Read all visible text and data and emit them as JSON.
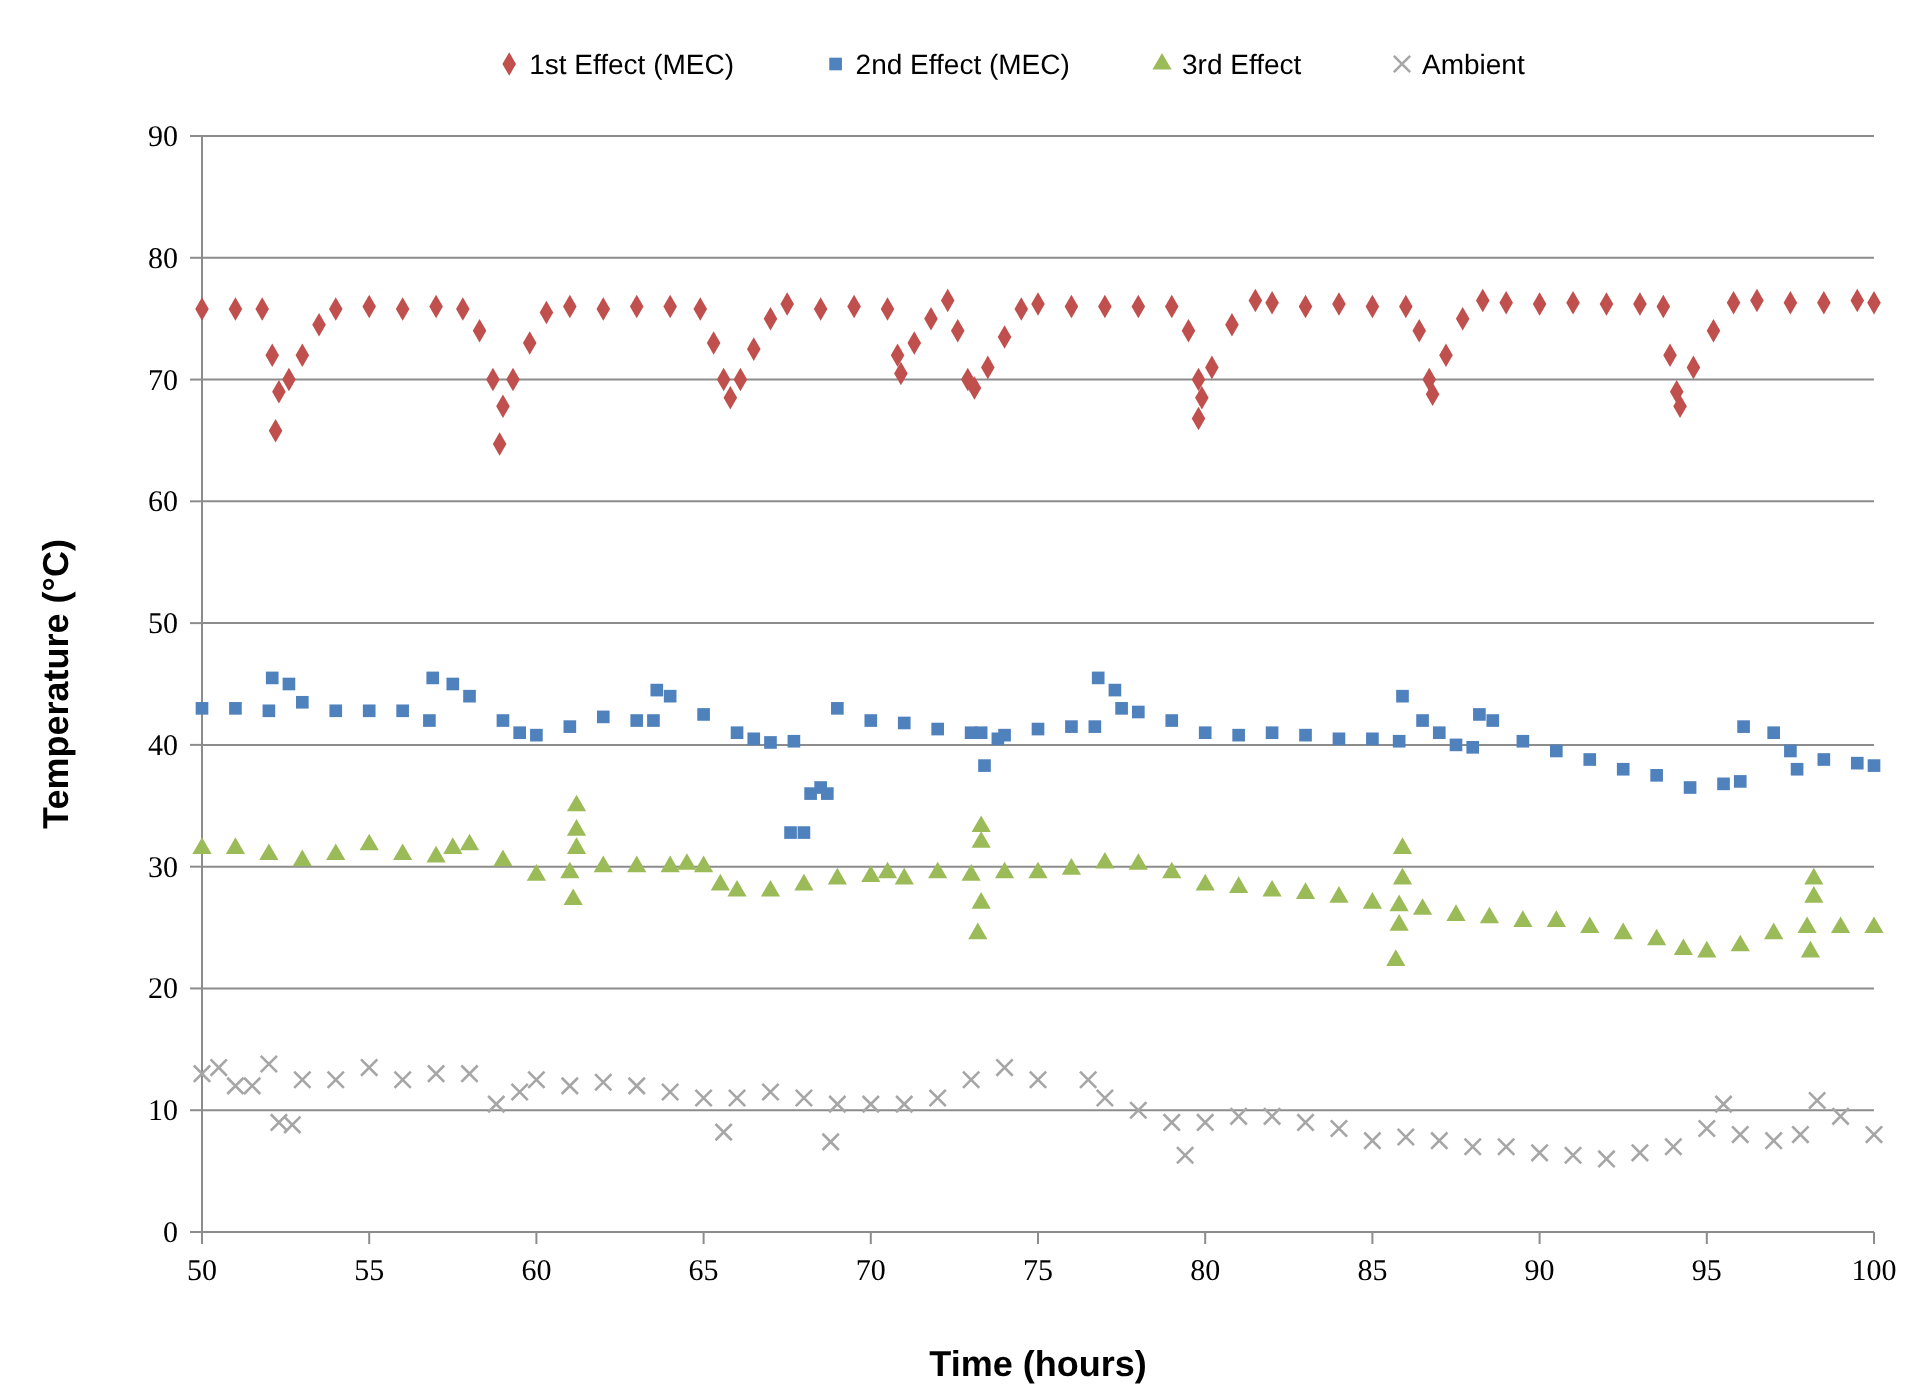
{
  "chart_data": {
    "type": "scatter",
    "xlabel": "Time (hours)",
    "ylabel": "Temperature (°C)",
    "xlim": [
      50,
      100
    ],
    "ylim": [
      0,
      90
    ],
    "xticks": [
      50,
      55,
      60,
      65,
      70,
      75,
      80,
      85,
      90,
      95,
      100
    ],
    "yticks": [
      0,
      10,
      20,
      30,
      40,
      50,
      60,
      70,
      80,
      90
    ],
    "grid": "y",
    "legend": "top",
    "series": [
      {
        "name": "1st Effect (MEC)",
        "color": "#c0504d",
        "marker": "diamond",
        "x": [
          50,
          51,
          51.8,
          52.1,
          52.3,
          52.2,
          52.6,
          53,
          53.5,
          54,
          55,
          56,
          57,
          57.8,
          58.3,
          58.7,
          59,
          58.9,
          59.3,
          59.8,
          60.3,
          61,
          62,
          63,
          64,
          64.9,
          65.3,
          65.6,
          65.8,
          66.1,
          66.5,
          67,
          67.5,
          68.5,
          69.5,
          70.5,
          70.8,
          70.9,
          71.3,
          71.8,
          72.3,
          72.6,
          72.9,
          73.1,
          73.5,
          74,
          74.5,
          75,
          76,
          77,
          78,
          79,
          79.5,
          79.8,
          79.9,
          79.8,
          80.2,
          80.8,
          81.5,
          82,
          83,
          84,
          85,
          86,
          86.4,
          86.7,
          86.8,
          87.2,
          87.7,
          88.3,
          89,
          90,
          91,
          92,
          93,
          93.7,
          93.9,
          94.1,
          94.2,
          94.6,
          95.2,
          95.8,
          96.5,
          97.5,
          98.5,
          99.5,
          100
        ],
        "values": [
          75.8,
          75.8,
          75.8,
          72,
          69,
          65.8,
          70,
          72,
          74.5,
          75.8,
          76,
          75.8,
          76,
          75.8,
          74,
          70,
          67.8,
          64.7,
          70,
          73,
          75.5,
          76,
          75.8,
          76,
          76,
          75.8,
          73,
          70,
          68.5,
          70,
          72.5,
          75,
          76.2,
          75.8,
          76,
          75.8,
          72,
          70.5,
          73,
          75,
          76.5,
          74,
          70,
          69.3,
          71,
          73.5,
          75.8,
          76.2,
          76,
          76,
          76,
          76,
          74,
          70,
          68.5,
          66.8,
          71,
          74.5,
          76.5,
          76.3,
          76,
          76.2,
          76,
          76,
          74,
          70,
          68.8,
          72,
          75,
          76.5,
          76.3,
          76.2,
          76.3,
          76.2,
          76.2,
          76,
          72,
          69,
          67.8,
          71,
          74,
          76.3,
          76.5,
          76.3,
          76.3,
          76.5,
          76.3
        ]
      },
      {
        "name": "2nd Effect (MEC)",
        "color": "#4f81bd",
        "marker": "square",
        "x": [
          50,
          51,
          52,
          52.1,
          52.6,
          53,
          54,
          55,
          56,
          56.8,
          56.9,
          57.5,
          58,
          59,
          59.5,
          60,
          61,
          62,
          63,
          63.5,
          63.6,
          64,
          65,
          66,
          66.5,
          67,
          67.7,
          67.6,
          68,
          68.2,
          68.5,
          68.7,
          69,
          70,
          71,
          72,
          73,
          73.3,
          73.4,
          73.8,
          74,
          75,
          76,
          76.7,
          76.8,
          77.3,
          77.5,
          78,
          79,
          80,
          81,
          82,
          83,
          84,
          85,
          85.8,
          85.9,
          86.5,
          87,
          87.5,
          88,
          88.2,
          88.6,
          89.5,
          90.5,
          91.5,
          92.5,
          93.5,
          94.5,
          95.5,
          96,
          96.1,
          97,
          97.5,
          97.7,
          98.5,
          99.5,
          100
        ],
        "values": [
          43,
          43,
          42.8,
          45.5,
          45,
          43.5,
          42.8,
          42.8,
          42.8,
          42,
          45.5,
          45,
          44,
          42,
          41,
          40.8,
          41.5,
          42.3,
          42,
          42,
          44.5,
          44,
          42.5,
          41,
          40.5,
          40.2,
          40.3,
          32.8,
          32.8,
          36,
          36.5,
          36,
          43,
          42,
          41.8,
          41.3,
          41,
          41,
          38.3,
          40.5,
          40.8,
          41.3,
          41.5,
          41.5,
          45.5,
          44.5,
          43,
          42.7,
          42,
          41,
          40.8,
          41,
          40.8,
          40.5,
          40.5,
          40.3,
          44,
          42,
          41,
          40,
          39.8,
          42.5,
          42,
          40.3,
          39.5,
          38.8,
          38,
          37.5,
          36.5,
          36.8,
          37,
          41.5,
          41,
          39.5,
          38,
          38.8,
          38.5,
          38.3
        ]
      },
      {
        "name": "3rd Effect",
        "color": "#9bbb59",
        "marker": "triangle",
        "x": [
          50,
          51,
          52,
          53,
          54,
          55,
          56,
          57,
          57.5,
          58,
          59,
          60,
          61,
          61.2,
          61.2,
          61.2,
          61.1,
          62,
          63,
          64,
          64.5,
          65,
          65.5,
          66,
          67,
          68,
          69,
          70,
          70.5,
          71,
          72,
          73,
          73.3,
          73.3,
          73.3,
          73.2,
          74,
          75,
          76,
          77,
          78,
          79,
          80,
          81,
          82,
          83,
          84,
          85,
          85.8,
          85.9,
          85.9,
          85.8,
          85.7,
          86.5,
          87.5,
          88.5,
          89.5,
          90.5,
          91.5,
          92.5,
          93.5,
          94.3,
          95,
          96,
          97,
          98,
          98.2,
          98.2,
          98.1,
          99,
          100
        ],
        "values": [
          31.5,
          31.5,
          31,
          30.5,
          31,
          31.8,
          31,
          30.8,
          31.5,
          31.8,
          30.5,
          29.3,
          29.5,
          35,
          33,
          31.5,
          27.3,
          30,
          30,
          30,
          30.2,
          30,
          28.5,
          28,
          28,
          28.5,
          29,
          29.2,
          29.5,
          29,
          29.5,
          29.3,
          33.3,
          32,
          27,
          24.5,
          29.5,
          29.5,
          29.8,
          30.3,
          30.2,
          29.5,
          28.5,
          28.3,
          28,
          27.8,
          27.5,
          27,
          26.8,
          31.5,
          29,
          25.2,
          22.3,
          26.5,
          26,
          25.8,
          25.5,
          25.5,
          25,
          24.5,
          24,
          23.2,
          23,
          23.5,
          24.5,
          25,
          29,
          27.5,
          23,
          25,
          25
        ]
      },
      {
        "name": "Ambient",
        "color": "#a6a6a6",
        "marker": "cross",
        "x": [
          50,
          50.5,
          51,
          51.5,
          52,
          52.3,
          52.7,
          53,
          54,
          55,
          56,
          57,
          58,
          58.8,
          59.5,
          60,
          61,
          62,
          63,
          64,
          65,
          65.6,
          66,
          67,
          68,
          68.8,
          69,
          70,
          71,
          72,
          73,
          74,
          75,
          76.5,
          77,
          78,
          79,
          79.4,
          80,
          81,
          82,
          83,
          84,
          85,
          86,
          87,
          88,
          89,
          90,
          91,
          92,
          93,
          94,
          95,
          95.5,
          96,
          97,
          97.8,
          98.3,
          99,
          100
        ],
        "values": [
          13,
          13.5,
          12,
          12,
          13.8,
          9,
          8.8,
          12.5,
          12.5,
          13.5,
          12.5,
          13,
          13,
          10.5,
          11.5,
          12.5,
          12,
          12.3,
          12,
          11.5,
          11,
          8.2,
          11,
          11.5,
          11,
          7.4,
          10.5,
          10.5,
          10.5,
          11,
          12.5,
          13.5,
          12.5,
          12.5,
          11,
          10,
          9,
          6.3,
          9,
          9.5,
          9.5,
          9,
          8.5,
          7.5,
          7.8,
          7.5,
          7,
          7,
          6.5,
          6.3,
          6,
          6.5,
          7,
          8.5,
          10.5,
          8,
          7.5,
          8,
          10.8,
          9.5,
          8
        ]
      }
    ]
  }
}
